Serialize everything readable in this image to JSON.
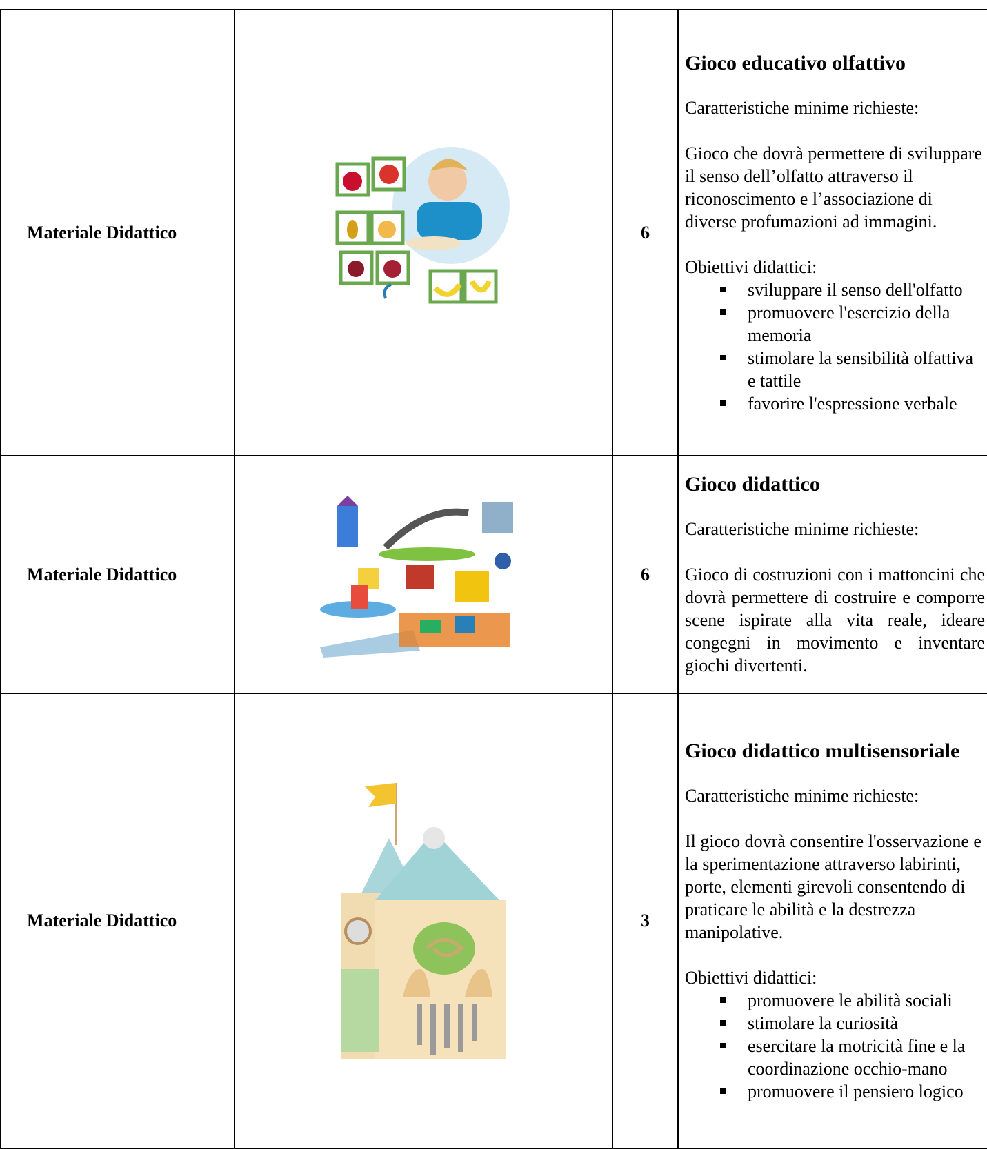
{
  "table": {
    "rows": [
      {
        "category": "Materiale Didattico",
        "quantity": "6",
        "title": "Gioco educativo olfattivo",
        "intro": "Caratteristiche minime richieste:",
        "description": "Gioco che dovrà permettere di sviluppare il senso dell’olfatto attraverso il riconoscimento e l’associazione di diverse profumazioni ad immagini.",
        "objectives_heading": "Obiettivi didattici:",
        "objectives": [
          "sviluppare il senso dell'olfatto",
          "promuovere l'esercizio della memoria",
          "stimolare la sensibilità olfattiva e tattile",
          "favorire l'espressione verbale"
        ]
      },
      {
        "category": "Materiale Didattico",
        "quantity": "6",
        "title": "Gioco didattico",
        "intro": "Caratteristiche minime richieste:",
        "description": "Gioco di costruzioni con i mattoncini che dovrà permettere di costruire e comporre scene ispirate alla vita reale, ideare congegni in movimento e inventare giochi divertenti."
      },
      {
        "category": "Materiale Didattico",
        "quantity": "3",
        "title": "Gioco didattico multisensoriale",
        "intro": "Caratteristiche minime richieste:",
        "description": "Il gioco dovrà consentire l'osservazione e la sperimentazione attraverso labirinti, porte, elementi girevoli consentendo di praticare le abilità e la destrezza manipolative.",
        "objectives_heading": "Obiettivi didattici:",
        "objectives": [
          "promuovere le abilità sociali",
          "stimolare la curiosità",
          "esercitare la motricità fine e la coordinazione occhio-mano",
          "promuovere il pensiero logico"
        ]
      }
    ]
  }
}
